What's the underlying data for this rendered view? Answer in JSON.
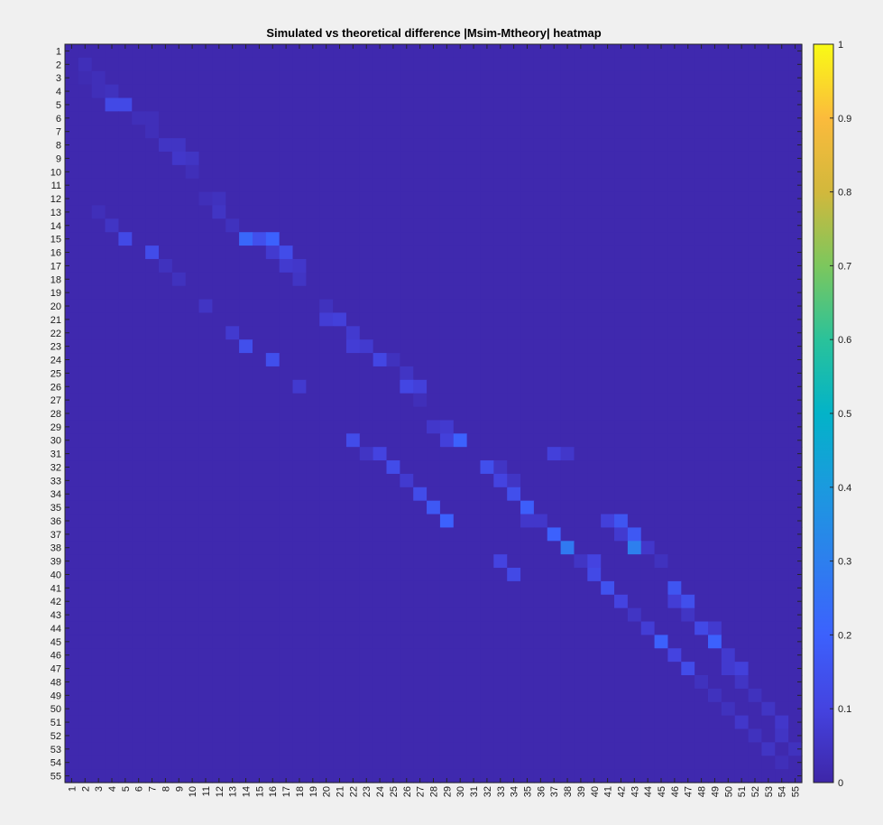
{
  "chart_data": {
    "type": "heatmap",
    "title": "Simulated vs theoretical difference |Msim-Mtheory| heatmap",
    "xlabel": "",
    "ylabel": "",
    "x_categories": [
      "1",
      "2",
      "3",
      "4",
      "5",
      "6",
      "7",
      "8",
      "9",
      "10",
      "11",
      "12",
      "13",
      "14",
      "15",
      "16",
      "17",
      "18",
      "19",
      "20",
      "21",
      "22",
      "23",
      "24",
      "25",
      "26",
      "27",
      "28",
      "29",
      "30",
      "31",
      "32",
      "33",
      "34",
      "35",
      "36",
      "37",
      "38",
      "39",
      "40",
      "41",
      "42",
      "43",
      "44",
      "45",
      "46",
      "47",
      "48",
      "49",
      "50",
      "51",
      "52",
      "53",
      "54",
      "55"
    ],
    "y_categories": [
      "1",
      "2",
      "3",
      "4",
      "5",
      "6",
      "7",
      "8",
      "9",
      "10",
      "11",
      "12",
      "13",
      "14",
      "15",
      "16",
      "17",
      "18",
      "19",
      "20",
      "21",
      "22",
      "23",
      "24",
      "25",
      "26",
      "27",
      "28",
      "29",
      "30",
      "31",
      "32",
      "33",
      "34",
      "35",
      "36",
      "37",
      "38",
      "39",
      "40",
      "41",
      "42",
      "43",
      "44",
      "45",
      "46",
      "47",
      "48",
      "49",
      "50",
      "51",
      "52",
      "53",
      "54",
      "55"
    ],
    "color_range": [
      0,
      1
    ],
    "colormap": "parula",
    "colorbar_ticks": [
      "0",
      "0.1",
      "0.2",
      "0.3",
      "0.4",
      "0.5",
      "0.6",
      "0.7",
      "0.8",
      "0.9",
      "1"
    ],
    "default_value": 0.01,
    "cells": [
      {
        "row": 2,
        "col": 2,
        "value": 0.03
      },
      {
        "row": 3,
        "col": 2,
        "value": 0.02
      },
      {
        "row": 3,
        "col": 3,
        "value": 0.03
      },
      {
        "row": 4,
        "col": 3,
        "value": 0.03
      },
      {
        "row": 4,
        "col": 4,
        "value": 0.04
      },
      {
        "row": 5,
        "col": 4,
        "value": 0.12
      },
      {
        "row": 5,
        "col": 5,
        "value": 0.12
      },
      {
        "row": 6,
        "col": 6,
        "value": 0.03
      },
      {
        "row": 6,
        "col": 7,
        "value": 0.03
      },
      {
        "row": 7,
        "col": 7,
        "value": 0.03
      },
      {
        "row": 8,
        "col": 8,
        "value": 0.05
      },
      {
        "row": 8,
        "col": 9,
        "value": 0.05
      },
      {
        "row": 9,
        "col": 9,
        "value": 0.06
      },
      {
        "row": 9,
        "col": 10,
        "value": 0.05
      },
      {
        "row": 10,
        "col": 10,
        "value": 0.03
      },
      {
        "row": 12,
        "col": 11,
        "value": 0.03
      },
      {
        "row": 12,
        "col": 12,
        "value": 0.04
      },
      {
        "row": 13,
        "col": 12,
        "value": 0.05
      },
      {
        "row": 13,
        "col": 3,
        "value": 0.03
      },
      {
        "row": 14,
        "col": 13,
        "value": 0.04
      },
      {
        "row": 14,
        "col": 4,
        "value": 0.05
      },
      {
        "row": 15,
        "col": 5,
        "value": 0.12
      },
      {
        "row": 15,
        "col": 14,
        "value": 0.22
      },
      {
        "row": 15,
        "col": 15,
        "value": 0.14
      },
      {
        "row": 15,
        "col": 16,
        "value": 0.2
      },
      {
        "row": 16,
        "col": 7,
        "value": 0.13
      },
      {
        "row": 16,
        "col": 16,
        "value": 0.07
      },
      {
        "row": 16,
        "col": 17,
        "value": 0.13
      },
      {
        "row": 17,
        "col": 8,
        "value": 0.04
      },
      {
        "row": 17,
        "col": 17,
        "value": 0.07
      },
      {
        "row": 17,
        "col": 18,
        "value": 0.06
      },
      {
        "row": 18,
        "col": 9,
        "value": 0.04
      },
      {
        "row": 18,
        "col": 18,
        "value": 0.05
      },
      {
        "row": 20,
        "col": 11,
        "value": 0.05
      },
      {
        "row": 20,
        "col": 20,
        "value": 0.04
      },
      {
        "row": 21,
        "col": 20,
        "value": 0.08
      },
      {
        "row": 21,
        "col": 21,
        "value": 0.09
      },
      {
        "row": 22,
        "col": 13,
        "value": 0.07
      },
      {
        "row": 22,
        "col": 22,
        "value": 0.07
      },
      {
        "row": 23,
        "col": 14,
        "value": 0.14
      },
      {
        "row": 23,
        "col": 22,
        "value": 0.08
      },
      {
        "row": 23,
        "col": 23,
        "value": 0.07
      },
      {
        "row": 24,
        "col": 16,
        "value": 0.14
      },
      {
        "row": 24,
        "col": 24,
        "value": 0.11
      },
      {
        "row": 24,
        "col": 25,
        "value": 0.04
      },
      {
        "row": 25,
        "col": 26,
        "value": 0.05
      },
      {
        "row": 26,
        "col": 18,
        "value": 0.07
      },
      {
        "row": 26,
        "col": 26,
        "value": 0.11
      },
      {
        "row": 26,
        "col": 27,
        "value": 0.09
      },
      {
        "row": 27,
        "col": 27,
        "value": 0.03
      },
      {
        "row": 29,
        "col": 28,
        "value": 0.06
      },
      {
        "row": 29,
        "col": 29,
        "value": 0.07
      },
      {
        "row": 30,
        "col": 22,
        "value": 0.13
      },
      {
        "row": 30,
        "col": 29,
        "value": 0.09
      },
      {
        "row": 30,
        "col": 30,
        "value": 0.2
      },
      {
        "row": 31,
        "col": 23,
        "value": 0.05
      },
      {
        "row": 31,
        "col": 24,
        "value": 0.1
      },
      {
        "row": 31,
        "col": 37,
        "value": 0.09
      },
      {
        "row": 31,
        "col": 38,
        "value": 0.06
      },
      {
        "row": 32,
        "col": 25,
        "value": 0.13
      },
      {
        "row": 32,
        "col": 32,
        "value": 0.14
      },
      {
        "row": 32,
        "col": 33,
        "value": 0.05
      },
      {
        "row": 33,
        "col": 26,
        "value": 0.07
      },
      {
        "row": 33,
        "col": 33,
        "value": 0.1
      },
      {
        "row": 33,
        "col": 34,
        "value": 0.05
      },
      {
        "row": 34,
        "col": 27,
        "value": 0.13
      },
      {
        "row": 34,
        "col": 34,
        "value": 0.14
      },
      {
        "row": 35,
        "col": 28,
        "value": 0.17
      },
      {
        "row": 35,
        "col": 35,
        "value": 0.19
      },
      {
        "row": 36,
        "col": 29,
        "value": 0.2
      },
      {
        "row": 36,
        "col": 35,
        "value": 0.06
      },
      {
        "row": 36,
        "col": 36,
        "value": 0.06
      },
      {
        "row": 36,
        "col": 41,
        "value": 0.09
      },
      {
        "row": 36,
        "col": 42,
        "value": 0.16
      },
      {
        "row": 37,
        "col": 37,
        "value": 0.2
      },
      {
        "row": 37,
        "col": 42,
        "value": 0.07
      },
      {
        "row": 37,
        "col": 43,
        "value": 0.17
      },
      {
        "row": 38,
        "col": 38,
        "value": 0.28
      },
      {
        "row": 38,
        "col": 43,
        "value": 0.3
      },
      {
        "row": 38,
        "col": 44,
        "value": 0.06
      },
      {
        "row": 39,
        "col": 33,
        "value": 0.1
      },
      {
        "row": 39,
        "col": 39,
        "value": 0.05
      },
      {
        "row": 39,
        "col": 40,
        "value": 0.1
      },
      {
        "row": 39,
        "col": 45,
        "value": 0.04
      },
      {
        "row": 40,
        "col": 34,
        "value": 0.12
      },
      {
        "row": 40,
        "col": 40,
        "value": 0.12
      },
      {
        "row": 41,
        "col": 41,
        "value": 0.15
      },
      {
        "row": 41,
        "col": 46,
        "value": 0.16
      },
      {
        "row": 42,
        "col": 42,
        "value": 0.1
      },
      {
        "row": 42,
        "col": 46,
        "value": 0.08
      },
      {
        "row": 42,
        "col": 47,
        "value": 0.14
      },
      {
        "row": 43,
        "col": 43,
        "value": 0.05
      },
      {
        "row": 43,
        "col": 47,
        "value": 0.05
      },
      {
        "row": 44,
        "col": 44,
        "value": 0.08
      },
      {
        "row": 44,
        "col": 48,
        "value": 0.12
      },
      {
        "row": 44,
        "col": 49,
        "value": 0.07
      },
      {
        "row": 45,
        "col": 45,
        "value": 0.2
      },
      {
        "row": 45,
        "col": 49,
        "value": 0.2
      },
      {
        "row": 46,
        "col": 46,
        "value": 0.1
      },
      {
        "row": 46,
        "col": 50,
        "value": 0.07
      },
      {
        "row": 47,
        "col": 47,
        "value": 0.13
      },
      {
        "row": 47,
        "col": 50,
        "value": 0.07
      },
      {
        "row": 47,
        "col": 51,
        "value": 0.09
      },
      {
        "row": 48,
        "col": 48,
        "value": 0.04
      },
      {
        "row": 48,
        "col": 51,
        "value": 0.05
      },
      {
        "row": 49,
        "col": 49,
        "value": 0.04
      },
      {
        "row": 49,
        "col": 52,
        "value": 0.04
      },
      {
        "row": 50,
        "col": 50,
        "value": 0.04
      },
      {
        "row": 50,
        "col": 53,
        "value": 0.05
      },
      {
        "row": 51,
        "col": 51,
        "value": 0.06
      },
      {
        "row": 51,
        "col": 54,
        "value": 0.06
      },
      {
        "row": 52,
        "col": 52,
        "value": 0.04
      },
      {
        "row": 52,
        "col": 54,
        "value": 0.05
      },
      {
        "row": 53,
        "col": 53,
        "value": 0.05
      },
      {
        "row": 53,
        "col": 55,
        "value": 0.04
      },
      {
        "row": 54,
        "col": 54,
        "value": 0.03
      }
    ]
  }
}
